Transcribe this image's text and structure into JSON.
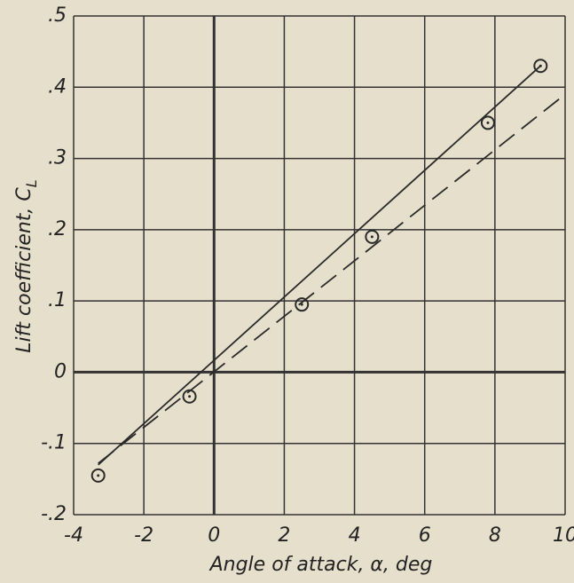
{
  "chart_data": {
    "type": "line",
    "xlabel": "Angle of attack, α, deg",
    "ylabel": "Lift coefficient, C",
    "ylabel_sub": "L",
    "xlim": [
      -4,
      10
    ],
    "ylim": [
      -0.2,
      0.5
    ],
    "xticks": [
      -4,
      -2,
      0,
      2,
      4,
      6,
      8,
      10
    ],
    "yticks": [
      {
        "value": -0.2,
        "label": "-.2"
      },
      {
        "value": -0.1,
        "label": "-.1"
      },
      {
        "value": 0,
        "label": "0"
      },
      {
        "value": 0.1,
        "label": ".1"
      },
      {
        "value": 0.2,
        "label": ".2"
      },
      {
        "value": 0.3,
        "label": ".3"
      },
      {
        "value": 0.4,
        "label": ".4"
      },
      {
        "value": 0.5,
        "label": ".5"
      }
    ],
    "grid": true,
    "series": [
      {
        "style": "markers",
        "color": "#2a2a2a",
        "x": [
          -3.3,
          -0.7,
          2.5,
          4.5,
          7.8,
          9.3
        ],
        "values": [
          -0.145,
          -0.034,
          0.095,
          0.19,
          0.35,
          0.43
        ]
      },
      {
        "style": "solid",
        "color": "#2a2a2a",
        "x": [
          -3.3,
          9.3
        ],
        "values": [
          -0.13,
          0.43
        ]
      },
      {
        "style": "dashed",
        "color": "#2a2a2a",
        "x": [
          -3.3,
          10
        ],
        "values": [
          -0.128,
          0.39
        ]
      }
    ]
  }
}
